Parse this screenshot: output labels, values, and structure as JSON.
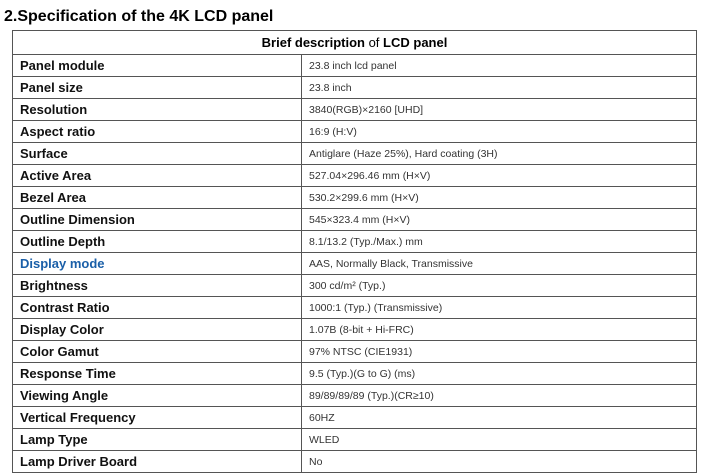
{
  "heading": "2.Specification of the 4K LCD panel",
  "table": {
    "header": [
      "Brief description",
      "of",
      "LCD panel"
    ],
    "rows": [
      [
        "Panel module",
        "23.8 inch lcd panel"
      ],
      [
        "Panel size",
        "23.8 inch"
      ],
      [
        "Resolution",
        "3840(RGB)×2160 [UHD]"
      ],
      [
        "Aspect ratio",
        "16:9 (H:V)"
      ],
      [
        "Surface",
        "Antiglare (Haze 25%), Hard coating (3H)"
      ],
      [
        "Active Area",
        "527.04×296.46 mm (H×V)"
      ],
      [
        "Bezel Area",
        "530.2×299.6 mm (H×V)"
      ],
      [
        "Outline Dimension",
        "545×323.4 mm (H×V)"
      ],
      [
        "Outline Depth",
        "8.1/13.2 (Typ./Max.) mm"
      ],
      [
        "Display mode",
        "AAS, Normally Black, Transmissive"
      ],
      [
        "Brightness",
        "300 cd/m² (Typ.)"
      ],
      [
        "Contrast Ratio",
        "1000:1 (Typ.) (Transmissive)"
      ],
      [
        "Display Color",
        "1.07B (8-bit + Hi-FRC)"
      ],
      [
        "Color Gamut",
        "97% NTSC (CIE1931)"
      ],
      [
        "Response Time",
        "9.5 (Typ.)(G to G) (ms)"
      ],
      [
        "Viewing Angle",
        "89/89/89/89 (Typ.)(CR≥10)"
      ],
      [
        "Vertical Frequency",
        "60HZ"
      ],
      [
        "Lamp Type",
        "WLED"
      ],
      [
        "Lamp Driver Board",
        "No"
      ]
    ]
  }
}
